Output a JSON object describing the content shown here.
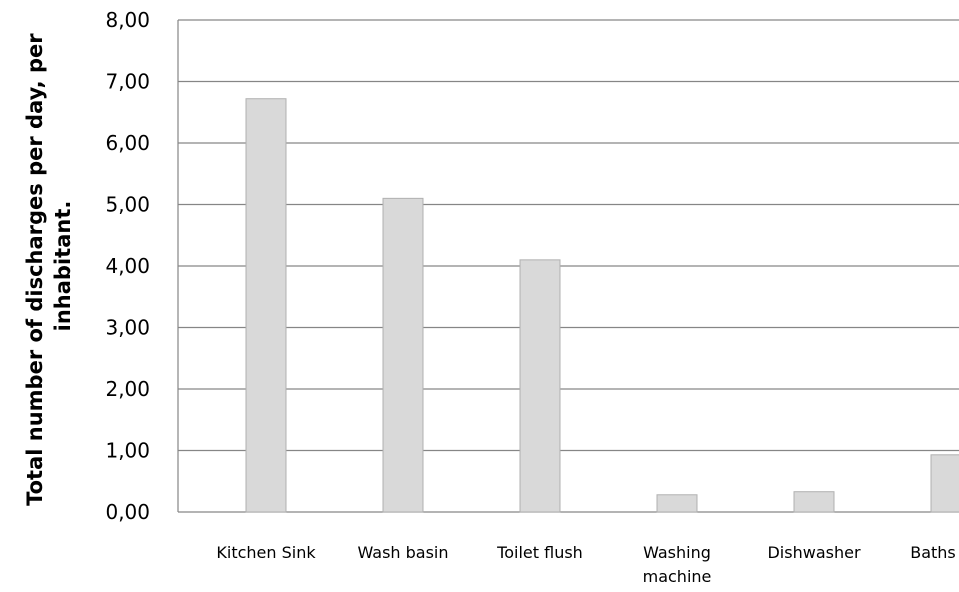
{
  "chart_data": {
    "type": "bar",
    "title": "",
    "xlabel": "",
    "ylabel_lines": [
      "Total number of discharges per day, per",
      "inhabitant."
    ],
    "ylim": [
      0,
      8
    ],
    "y_ticks": [
      0,
      1,
      2,
      3,
      4,
      5,
      6,
      7,
      8
    ],
    "y_tick_labels": [
      "0,00",
      "1,00",
      "2,00",
      "3,00",
      "4,00",
      "5,00",
      "6,00",
      "7,00",
      "8,00"
    ],
    "grid": true,
    "categories": [
      "Kitchen Sink",
      "Wash basin",
      "Toilet flush",
      "Washing machine",
      "Dishwasher",
      "Baths"
    ],
    "category_label_lines": [
      [
        "Kitchen Sink"
      ],
      [
        "Wash basin"
      ],
      [
        "Toilet flush"
      ],
      [
        "Washing",
        "machine"
      ],
      [
        "Dishwasher"
      ],
      [
        "Baths"
      ]
    ],
    "values": [
      6.72,
      5.1,
      4.1,
      0.28,
      0.33,
      0.93
    ],
    "bar_color": "#d9d9d9",
    "bar_edge_color": "#b0b0b0",
    "grid_color": "#868686"
  }
}
